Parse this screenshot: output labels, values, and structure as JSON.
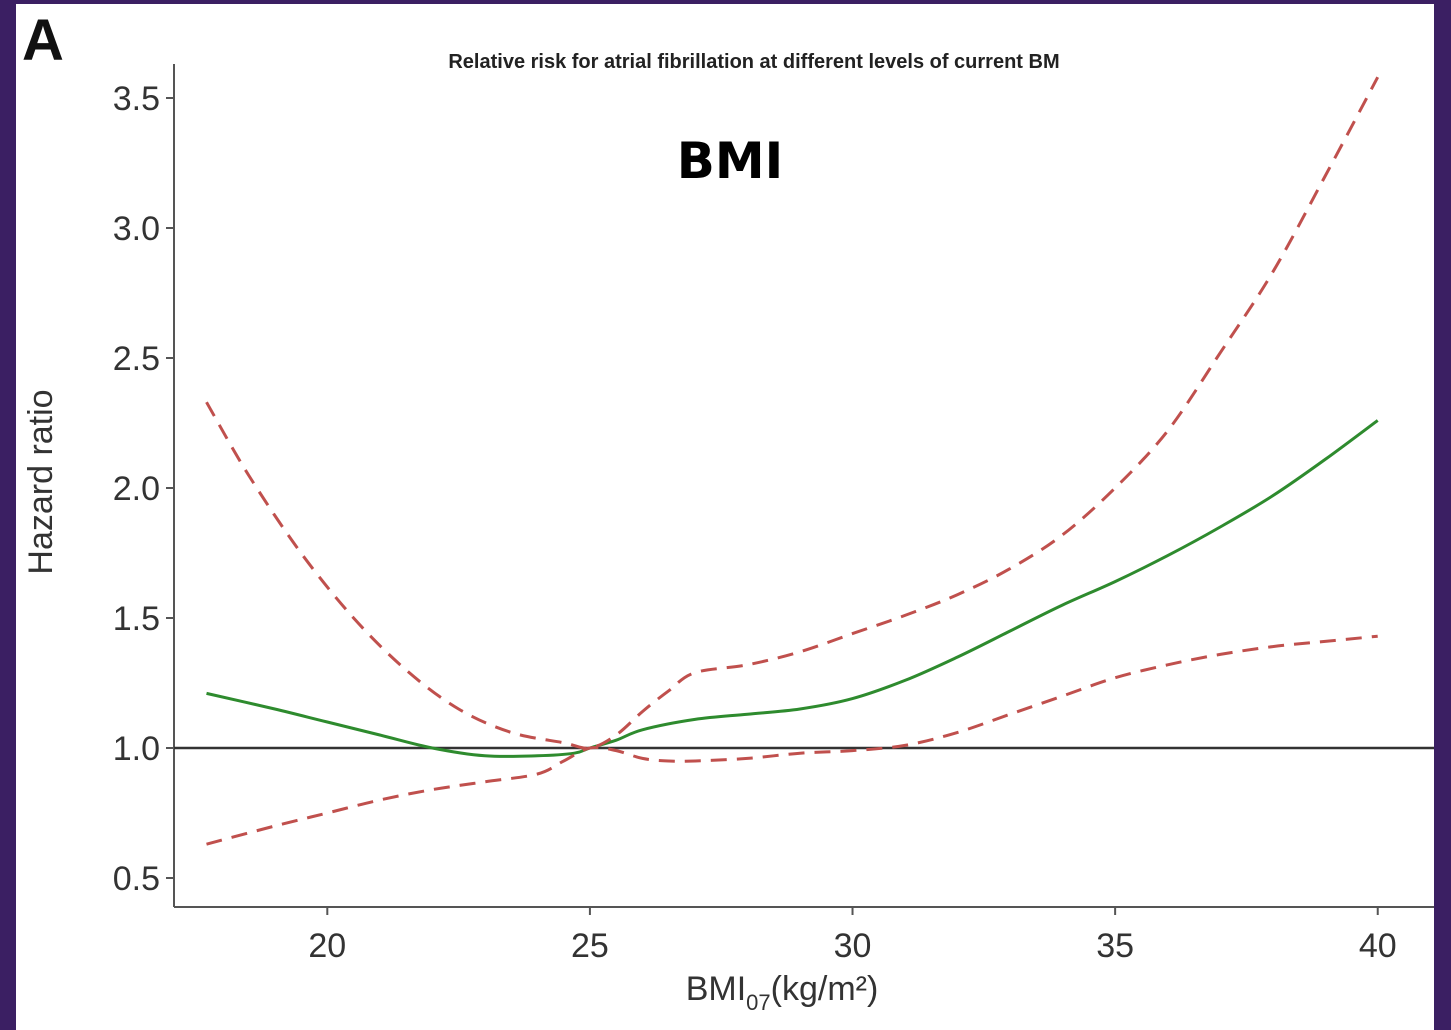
{
  "panel_label": "A",
  "overlay_label": "BMI",
  "chart_data": {
    "type": "line",
    "title": "Relative risk for atrial fibrillation at different levels of current BM",
    "xlabel_main": "BMI",
    "xlabel_sub": "07",
    "xlabel_unit": "(kg/m²)",
    "ylabel": "Hazard ratio",
    "xlim": [
      17.5,
      40.5
    ],
    "ylim": [
      0.4,
      3.6
    ],
    "x_ticks": [
      20,
      25,
      30,
      35,
      40
    ],
    "x_tick_labels": [
      "20",
      "25",
      "30",
      "35",
      "40"
    ],
    "y_ticks": [
      0.5,
      1.0,
      1.5,
      2.0,
      2.5,
      3.0,
      3.5
    ],
    "y_tick_labels": [
      "0.5",
      "1.0",
      "1.5",
      "2.0",
      "2.5",
      "3.0",
      "3.5"
    ],
    "reference_line": {
      "y": 1.0,
      "color": "#333333"
    },
    "grid": false,
    "series": [
      {
        "role": "estimate",
        "style": "solid",
        "color": "#2e8b2e",
        "x": [
          17.7,
          19,
          20,
          21,
          22,
          23,
          24,
          24.7,
          25,
          25.5,
          26,
          27,
          28,
          29,
          30,
          31,
          32,
          33,
          34,
          35,
          36,
          37,
          38,
          39,
          40
        ],
        "y": [
          1.21,
          1.15,
          1.1,
          1.05,
          1.0,
          0.97,
          0.97,
          0.98,
          1.0,
          1.03,
          1.07,
          1.11,
          1.13,
          1.15,
          1.19,
          1.26,
          1.35,
          1.45,
          1.55,
          1.64,
          1.74,
          1.85,
          1.97,
          2.11,
          2.26
        ]
      },
      {
        "role": "upper-ci",
        "style": "dashed",
        "color": "#c0504d",
        "x": [
          17.7,
          18.5,
          19.5,
          20.5,
          21.5,
          22.5,
          23.5,
          24.5,
          25,
          25.5,
          26,
          26.5,
          27,
          28,
          29,
          30,
          31,
          32,
          33,
          34,
          35,
          36,
          37,
          38,
          39,
          40
        ],
        "y": [
          2.33,
          2.05,
          1.75,
          1.5,
          1.3,
          1.15,
          1.06,
          1.02,
          1.0,
          1.05,
          1.14,
          1.22,
          1.29,
          1.32,
          1.37,
          1.44,
          1.51,
          1.59,
          1.69,
          1.82,
          2.0,
          2.22,
          2.52,
          2.83,
          3.2,
          3.58
        ]
      },
      {
        "role": "lower-ci",
        "style": "dashed",
        "color": "#c0504d",
        "x": [
          17.7,
          19,
          20,
          21,
          22,
          23,
          24,
          24.5,
          25,
          25.5,
          26,
          26.5,
          27,
          28,
          29,
          30,
          31,
          32,
          33,
          34,
          35,
          36,
          37,
          38,
          39,
          40
        ],
        "y": [
          0.63,
          0.7,
          0.75,
          0.8,
          0.84,
          0.87,
          0.9,
          0.95,
          1.0,
          0.99,
          0.96,
          0.95,
          0.95,
          0.96,
          0.98,
          0.99,
          1.01,
          1.06,
          1.13,
          1.2,
          1.27,
          1.32,
          1.36,
          1.39,
          1.41,
          1.43
        ]
      }
    ]
  }
}
